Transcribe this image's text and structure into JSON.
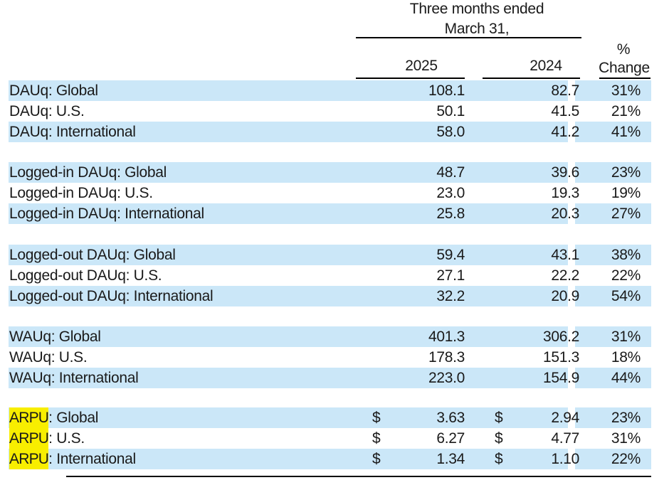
{
  "header": {
    "period_line1": "Three months ended",
    "period_line2": "March 31,",
    "col_2025": "2025",
    "col_2024": "2024",
    "pct_line1": "%",
    "pct_line2": "Change"
  },
  "colors": {
    "blue": "#cbe7f8",
    "yellow": "#f8ee00",
    "text": "#1a1a1a",
    "rule": "#000000"
  },
  "table": {
    "sections": [
      {
        "name": "DAUq",
        "rows": [
          {
            "prefix": "",
            "label": "DAUq: Global",
            "currency": "",
            "v2025": "108.1",
            "v2024": "82.7",
            "change": "31%"
          },
          {
            "prefix": "",
            "label": "DAUq: U.S.",
            "currency": "",
            "v2025": "50.1",
            "v2024": "41.5",
            "change": "21%"
          },
          {
            "prefix": "",
            "label": "DAUq: International",
            "currency": "",
            "v2025": "58.0",
            "v2024": "41.2",
            "change": "41%"
          }
        ]
      },
      {
        "name": "Logged-in DAUq",
        "rows": [
          {
            "prefix": "",
            "label": "Logged-in DAUq: Global",
            "currency": "",
            "v2025": "48.7",
            "v2024": "39.6",
            "change": "23%"
          },
          {
            "prefix": "",
            "label": "Logged-in DAUq: U.S.",
            "currency": "",
            "v2025": "23.0",
            "v2024": "19.3",
            "change": "19%"
          },
          {
            "prefix": "",
            "label": "Logged-in DAUq: International",
            "currency": "",
            "v2025": "25.8",
            "v2024": "20.3",
            "change": "27%"
          }
        ]
      },
      {
        "name": "Logged-out DAUq",
        "rows": [
          {
            "prefix": "",
            "label": "Logged-out DAUq: Global",
            "currency": "",
            "v2025": "59.4",
            "v2024": "43.1",
            "change": "38%"
          },
          {
            "prefix": "",
            "label": "Logged-out DAUq: U.S.",
            "currency": "",
            "v2025": "27.1",
            "v2024": "22.2",
            "change": "22%"
          },
          {
            "prefix": "",
            "label": "Logged-out DAUq: International",
            "currency": "",
            "v2025": "32.2",
            "v2024": "20.9",
            "change": "54%"
          }
        ]
      },
      {
        "name": "WAUq",
        "rows": [
          {
            "prefix": "",
            "label": "WAUq: Global",
            "currency": "",
            "v2025": "401.3",
            "v2024": "306.2",
            "change": "31%"
          },
          {
            "prefix": "",
            "label": "WAUq: U.S.",
            "currency": "",
            "v2025": "178.3",
            "v2024": "151.3",
            "change": "18%"
          },
          {
            "prefix": "",
            "label": "WAUq: International",
            "currency": "",
            "v2025": "223.0",
            "v2024": "154.9",
            "change": "44%"
          }
        ]
      },
      {
        "name": "ARPU",
        "rows": [
          {
            "prefix": "ARPU",
            "label": ": Global",
            "currency": "$",
            "v2025": "3.63",
            "v2024": "2.94",
            "change": "23%"
          },
          {
            "prefix": "ARPU",
            "label": ": U.S.",
            "currency": "$",
            "v2025": "6.27",
            "v2024": "4.77",
            "change": "31%"
          },
          {
            "prefix": "ARPU",
            "label": ": International",
            "currency": "$",
            "v2025": "1.34",
            "v2024": "1.10",
            "change": "22%"
          }
        ]
      }
    ]
  }
}
